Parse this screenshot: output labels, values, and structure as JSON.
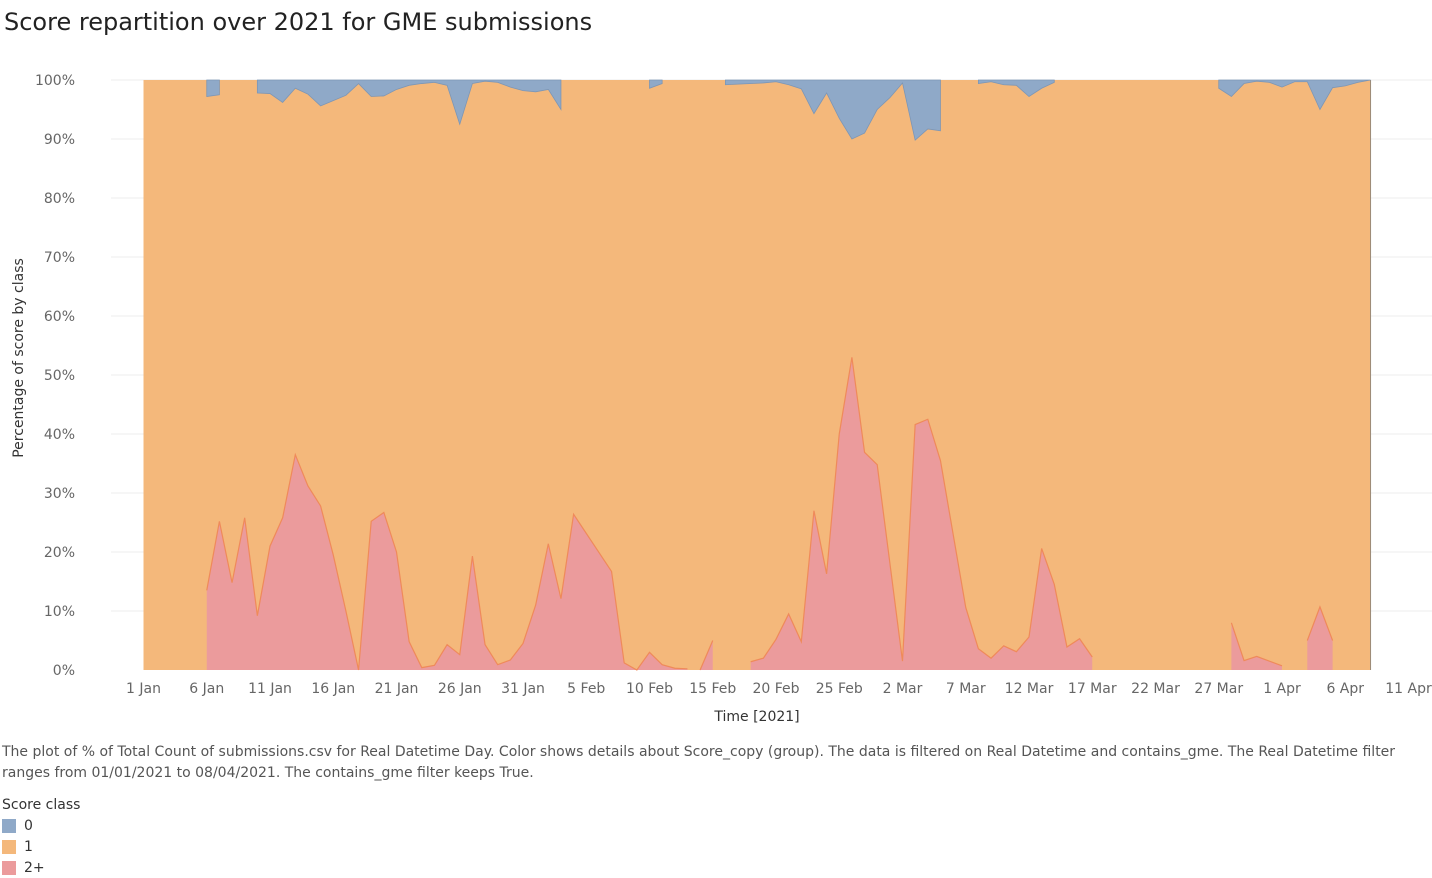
{
  "title": "Score repartition over 2021 for GME submissions",
  "caption": "The plot of % of Total Count of submissions.csv for Real Datetime Day.  Color shows details about Score_copy (group). The data is filtered on Real Datetime and contains_gme. The Real Datetime filter ranges from 01/01/2021 to 08/04/2021. The contains_gme filter keeps True.",
  "legend": {
    "title": "Score class",
    "items": [
      {
        "label": "0",
        "color": "#8fa9c8"
      },
      {
        "label": "1",
        "color": "#f4b87b"
      },
      {
        "label": "2+",
        "color": "#eb9b9c"
      }
    ]
  },
  "chart_data": {
    "type": "area",
    "stacked": true,
    "normalized": true,
    "xlabel": "Time [2021]",
    "ylabel": "Percentage of score by class",
    "x_start": "2021-01-01",
    "x_end": "2021-04-11",
    "x_ticks": [
      "1 Jan",
      "6 Jan",
      "11 Jan",
      "16 Jan",
      "21 Jan",
      "26 Jan",
      "31 Jan",
      "5 Feb",
      "10 Feb",
      "15 Feb",
      "20 Feb",
      "25 Feb",
      "2 Mar",
      "7 Mar",
      "12 Mar",
      "17 Mar",
      "22 Mar",
      "27 Mar",
      "1 Apr",
      "6 Apr",
      "11 Apr"
    ],
    "y_ticks": [
      "0%",
      "10%",
      "20%",
      "30%",
      "40%",
      "50%",
      "60%",
      "70%",
      "80%",
      "90%",
      "100%"
    ],
    "ylim": [
      0,
      100
    ],
    "grid": "horizontal",
    "legend_position": "bottom-left",
    "series": [
      {
        "name": "2+",
        "color": "#eb9b9c",
        "edge_color": "#ef8a5a",
        "segments": [
          [
            [
              "2021-01-06",
              13.5
            ],
            [
              "2021-01-07",
              25.2
            ],
            [
              "2021-01-08",
              14.8
            ],
            [
              "2021-01-09",
              25.8
            ],
            [
              "2021-01-10",
              9.2
            ],
            [
              "2021-01-11",
              21.0
            ],
            [
              "2021-01-12",
              25.8
            ],
            [
              "2021-01-13",
              36.5
            ],
            [
              "2021-01-14",
              31.2
            ],
            [
              "2021-01-15",
              27.8
            ],
            [
              "2021-01-16",
              19.5
            ],
            [
              "2021-01-17",
              10.0
            ],
            [
              "2021-01-18",
              0.0
            ],
            [
              "2021-01-19",
              25.2
            ],
            [
              "2021-01-20",
              26.7
            ],
            [
              "2021-01-21",
              20.0
            ],
            [
              "2021-01-22",
              4.8
            ],
            [
              "2021-01-23",
              0.4
            ],
            [
              "2021-01-24",
              0.8
            ],
            [
              "2021-01-25",
              4.3
            ],
            [
              "2021-01-26",
              2.6
            ],
            [
              "2021-01-27",
              19.3
            ],
            [
              "2021-01-28",
              4.3
            ],
            [
              "2021-01-29",
              0.9
            ],
            [
              "2021-01-30",
              1.7
            ],
            [
              "2021-01-31",
              4.5
            ],
            [
              "2021-02-01",
              11.0
            ],
            [
              "2021-02-02",
              21.4
            ],
            [
              "2021-02-03",
              12.1
            ],
            [
              "2021-02-04",
              26.4
            ],
            [
              "2021-02-07",
              16.7
            ],
            [
              "2021-02-08",
              1.2
            ],
            [
              "2021-02-09",
              0.0
            ],
            [
              "2021-02-10",
              3.0
            ],
            [
              "2021-02-11",
              0.9
            ],
            [
              "2021-02-12",
              0.3
            ],
            [
              "2021-02-13",
              0.2
            ]
          ],
          [
            [
              "2021-02-14",
              0.0
            ],
            [
              "2021-02-15",
              5.0
            ]
          ],
          [
            [
              "2021-02-18",
              1.4
            ],
            [
              "2021-02-19",
              2.0
            ],
            [
              "2021-02-20",
              5.2
            ],
            [
              "2021-02-21",
              9.5
            ],
            [
              "2021-02-22",
              4.8
            ],
            [
              "2021-02-23",
              27.0
            ],
            [
              "2021-02-24",
              16.3
            ],
            [
              "2021-02-25",
              40.0
            ],
            [
              "2021-02-26",
              53.0
            ],
            [
              "2021-02-27",
              36.9
            ],
            [
              "2021-02-28",
              34.8
            ],
            [
              "2021-03-02",
              1.5
            ],
            [
              "2021-03-03",
              41.6
            ],
            [
              "2021-03-04",
              42.5
            ],
            [
              "2021-03-05",
              35.5
            ],
            [
              "2021-03-07",
              10.6
            ],
            [
              "2021-03-08",
              3.6
            ],
            [
              "2021-03-09",
              2.0
            ],
            [
              "2021-03-10",
              4.1
            ],
            [
              "2021-03-11",
              3.1
            ],
            [
              "2021-03-12",
              5.6
            ],
            [
              "2021-03-13",
              20.6
            ],
            [
              "2021-03-14",
              14.5
            ],
            [
              "2021-03-15",
              3.9
            ],
            [
              "2021-03-16",
              5.3
            ],
            [
              "2021-03-17",
              2.2
            ]
          ],
          [
            [
              "2021-03-28",
              8.0
            ],
            [
              "2021-03-29",
              1.6
            ],
            [
              "2021-03-30",
              2.3
            ],
            [
              "2021-04-01",
              0.7
            ]
          ],
          [
            [
              "2021-04-03",
              5.0
            ],
            [
              "2021-04-04",
              10.7
            ],
            [
              "2021-04-05",
              5.0
            ]
          ]
        ]
      },
      {
        "name": "0",
        "color": "#8fa9c8",
        "edge_color": "#7d96b5",
        "description_of_values": "share of class 0, stacked on top (upper band)",
        "segments": [
          [
            [
              "2021-01-06",
              2.8
            ],
            [
              "2021-01-07",
              2.5
            ]
          ],
          [
            [
              "2021-01-10",
              2.2
            ],
            [
              "2021-01-11",
              2.3
            ],
            [
              "2021-01-12",
              3.8
            ],
            [
              "2021-01-13",
              1.4
            ],
            [
              "2021-01-14",
              2.4
            ],
            [
              "2021-01-15",
              4.4
            ],
            [
              "2021-01-16",
              3.5
            ],
            [
              "2021-01-17",
              2.6
            ],
            [
              "2021-01-18",
              0.6
            ],
            [
              "2021-01-19",
              2.8
            ],
            [
              "2021-01-20",
              2.7
            ],
            [
              "2021-01-21",
              1.6
            ],
            [
              "2021-01-22",
              0.9
            ],
            [
              "2021-01-23",
              0.6
            ],
            [
              "2021-01-24",
              0.4
            ],
            [
              "2021-01-25",
              0.9
            ],
            [
              "2021-01-26",
              7.5
            ],
            [
              "2021-01-27",
              0.6
            ],
            [
              "2021-01-28",
              0.2
            ],
            [
              "2021-01-29",
              0.4
            ],
            [
              "2021-01-30",
              1.2
            ],
            [
              "2021-01-31",
              1.8
            ],
            [
              "2021-02-01",
              2.0
            ],
            [
              "2021-02-02",
              1.6
            ],
            [
              "2021-02-03",
              5.0
            ]
          ],
          [
            [
              "2021-02-10",
              1.4
            ],
            [
              "2021-02-11",
              0.6
            ]
          ],
          [
            [
              "2021-02-16",
              0.8
            ],
            [
              "2021-02-17",
              0.7
            ],
            [
              "2021-02-19",
              0.5
            ],
            [
              "2021-02-20",
              0.3
            ],
            [
              "2021-02-21",
              0.8
            ],
            [
              "2021-02-22",
              1.5
            ],
            [
              "2021-02-23",
              5.7
            ],
            [
              "2021-02-24",
              2.2
            ],
            [
              "2021-02-25",
              6.5
            ],
            [
              "2021-02-26",
              10.0
            ],
            [
              "2021-02-27",
              9.0
            ],
            [
              "2021-02-28",
              5.0
            ],
            [
              "2021-03-01",
              3.0
            ],
            [
              "2021-03-02",
              0.5
            ],
            [
              "2021-03-03",
              10.2
            ],
            [
              "2021-03-04",
              8.3
            ],
            [
              "2021-03-05",
              8.6
            ]
          ],
          [
            [
              "2021-03-08",
              0.6
            ],
            [
              "2021-03-09",
              0.3
            ],
            [
              "2021-03-10",
              0.8
            ],
            [
              "2021-03-11",
              0.9
            ],
            [
              "2021-03-12",
              2.8
            ],
            [
              "2021-03-13",
              1.4
            ],
            [
              "2021-03-14",
              0.4
            ]
          ],
          [
            [
              "2021-03-27",
              1.4
            ],
            [
              "2021-03-28",
              2.8
            ],
            [
              "2021-03-29",
              0.6
            ],
            [
              "2021-03-30",
              0.2
            ],
            [
              "2021-03-31",
              0.4
            ],
            [
              "2021-04-01",
              1.2
            ],
            [
              "2021-04-02",
              0.3
            ],
            [
              "2021-04-03",
              0.3
            ],
            [
              "2021-04-04",
              5.0
            ],
            [
              "2021-04-05",
              1.3
            ],
            [
              "2021-04-06",
              1.0
            ],
            [
              "2021-04-07",
              0.4
            ],
            [
              "2021-04-08",
              0.0
            ]
          ]
        ]
      },
      {
        "name": "1",
        "color": "#f4b87b",
        "description_of_values": "share of class 1 (fills the remainder between 2+ and 0 bands), present 2021-01-01 to 2021-04-08",
        "span": [
          "2021-01-01",
          "2021-04-08"
        ]
      }
    ]
  }
}
